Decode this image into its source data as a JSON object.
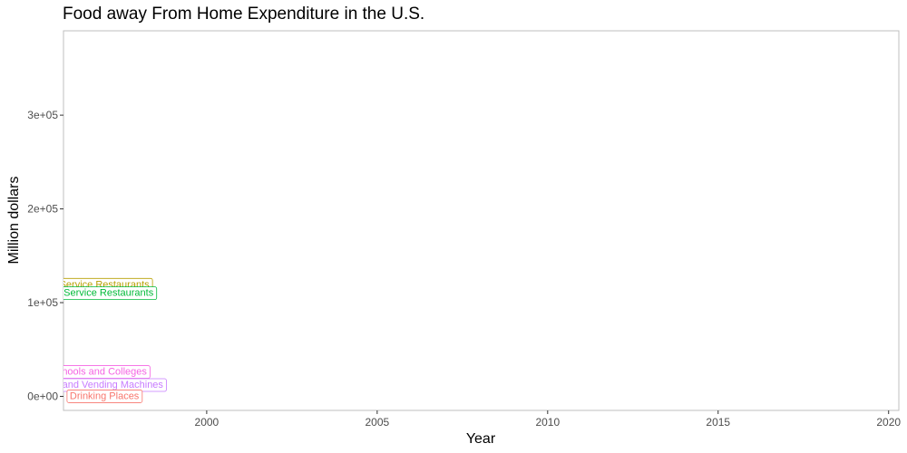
{
  "chart_data": {
    "type": "line",
    "title": "Food away From Home Expenditure in the U.S.",
    "xlabel": "Year",
    "ylabel": "Million dollars",
    "xlim": [
      1995.8,
      2020.3
    ],
    "ylim": [
      -15000,
      390000
    ],
    "x_ticks": [
      2000,
      2005,
      2010,
      2015,
      2020
    ],
    "x_tick_labels": [
      "2000",
      "2005",
      "2010",
      "2015",
      "2020"
    ],
    "y_ticks": [
      0,
      100000,
      200000,
      300000
    ],
    "y_tick_labels": [
      "0e+00",
      "1e+05",
      "2e+05",
      "3e+05"
    ],
    "grid": false,
    "series": [
      {
        "name": "Limited Service Restaurants",
        "label_visible": "Service Restaurants",
        "color": "#B79F00",
        "values": [
          {
            "x": 1997,
            "y": 120000
          }
        ]
      },
      {
        "name": "Full Service Restaurants",
        "label_visible": "d Service Restaurants",
        "color": "#00BA38",
        "values": [
          {
            "x": 1997,
            "y": 111000
          }
        ]
      },
      {
        "name": "Schools and Colleges",
        "label_visible": "hools and Colleges",
        "color": "#F564E3",
        "values": [
          {
            "x": 1997,
            "y": 27000
          }
        ]
      },
      {
        "name": "Stores and Vending Machines",
        "label_visible": "res and Vending Machines",
        "color": "#C77CFF",
        "values": [
          {
            "x": 1997,
            "y": 13000
          }
        ]
      },
      {
        "name": "Bars and Drinking Places",
        "label_visible": "Drinking Places",
        "color": "#F8766D",
        "values": [
          {
            "x": 1997,
            "y": 1000
          }
        ]
      }
    ]
  }
}
